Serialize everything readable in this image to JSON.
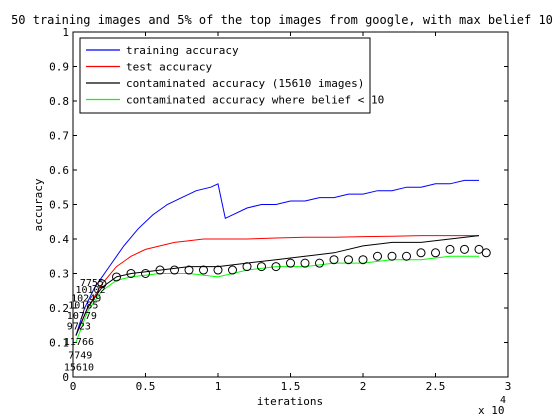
{
  "chart_data": {
    "type": "line",
    "title": "50 training images and 5% of the top images from google, with max belief 10",
    "xlabel": "iterations",
    "ylabel": "accuracy",
    "x_exponent": "x 10",
    "x_exponent_power": "4",
    "xlim": [
      0,
      3
    ],
    "ylim": [
      0,
      1
    ],
    "xticks": [
      0,
      0.5,
      1,
      1.5,
      2,
      2.5,
      3
    ],
    "xtick_labels": [
      "0",
      "0.5",
      "1",
      "1.5",
      "2",
      "2.5",
      "3"
    ],
    "yticks": [
      0,
      0.1,
      0.2,
      0.3,
      0.4,
      0.5,
      0.6,
      0.7,
      0.8,
      0.9,
      1
    ],
    "ytick_labels": [
      "0",
      "0.1",
      "0.2",
      "0.3",
      "0.4",
      "0.5",
      "0.6",
      "0.7",
      "0.8",
      "0.9",
      "1"
    ],
    "legend_position": "top-left",
    "series": [
      {
        "name": "training accuracy",
        "color": "#0000ff",
        "x": [
          0.02,
          0.08,
          0.15,
          0.25,
          0.35,
          0.45,
          0.55,
          0.65,
          0.75,
          0.85,
          0.95,
          1.0,
          1.02,
          1.05,
          1.1,
          1.2,
          1.3,
          1.4,
          1.5,
          1.6,
          1.7,
          1.8,
          1.9,
          2.0,
          2.1,
          2.2,
          2.3,
          2.4,
          2.5,
          2.6,
          2.7,
          2.8
        ],
        "y": [
          0.12,
          0.2,
          0.26,
          0.32,
          0.38,
          0.43,
          0.47,
          0.5,
          0.52,
          0.54,
          0.55,
          0.56,
          0.52,
          0.46,
          0.47,
          0.49,
          0.5,
          0.5,
          0.51,
          0.51,
          0.52,
          0.52,
          0.53,
          0.53,
          0.54,
          0.54,
          0.55,
          0.55,
          0.56,
          0.56,
          0.57,
          0.57
        ]
      },
      {
        "name": "test accuracy",
        "color": "#ff0000",
        "x": [
          0.02,
          0.1,
          0.2,
          0.3,
          0.4,
          0.5,
          0.6,
          0.7,
          0.8,
          0.9,
          1.0,
          1.2,
          1.4,
          1.6,
          1.8,
          2.0,
          2.2,
          2.4,
          2.6,
          2.8
        ],
        "y": [
          0.12,
          0.2,
          0.27,
          0.32,
          0.35,
          0.37,
          0.38,
          0.39,
          0.395,
          0.4,
          0.4,
          0.4,
          0.403,
          0.405,
          0.405,
          0.407,
          0.408,
          0.41,
          0.41,
          0.41
        ]
      },
      {
        "name": "contaminated accuracy (15610 images)",
        "color": "#000000",
        "x": [
          0.02,
          0.1,
          0.2,
          0.3,
          0.4,
          0.6,
          0.8,
          1.0,
          1.2,
          1.4,
          1.6,
          1.8,
          2.0,
          2.2,
          2.4,
          2.6,
          2.8
        ],
        "y": [
          0.12,
          0.2,
          0.26,
          0.29,
          0.3,
          0.31,
          0.32,
          0.32,
          0.33,
          0.34,
          0.35,
          0.36,
          0.38,
          0.39,
          0.39,
          0.4,
          0.41
        ]
      },
      {
        "name": "contaminated accuracy where belief < 10",
        "color": "#00ff00",
        "x": [
          0.02,
          0.1,
          0.2,
          0.3,
          0.4,
          0.6,
          0.8,
          1.0,
          1.2,
          1.4,
          1.6,
          1.8,
          2.0,
          2.2,
          2.4,
          2.6,
          2.8
        ],
        "y": [
          0.1,
          0.19,
          0.25,
          0.28,
          0.29,
          0.3,
          0.3,
          0.29,
          0.31,
          0.32,
          0.32,
          0.33,
          0.33,
          0.34,
          0.34,
          0.35,
          0.35
        ]
      }
    ],
    "circle_markers": {
      "color": "#000000",
      "x": [
        0.2,
        0.3,
        0.4,
        0.5,
        0.6,
        0.7,
        0.8,
        0.9,
        1.0,
        1.1,
        1.2,
        1.3,
        1.4,
        1.5,
        1.6,
        1.7,
        1.8,
        1.9,
        2.0,
        2.1,
        2.2,
        2.3,
        2.4,
        2.5,
        2.6,
        2.7,
        2.8,
        2.85
      ],
      "y": [
        0.27,
        0.29,
        0.3,
        0.3,
        0.31,
        0.31,
        0.31,
        0.31,
        0.31,
        0.31,
        0.32,
        0.32,
        0.32,
        0.33,
        0.33,
        0.33,
        0.34,
        0.34,
        0.34,
        0.35,
        0.35,
        0.35,
        0.36,
        0.36,
        0.37,
        0.37,
        0.37,
        0.36
      ]
    },
    "point_labels": [
      {
        "text": "15610",
        "x": 0.02,
        "y": 0.03
      },
      {
        "text": "7749",
        "x": 0.05,
        "y": 0.065
      },
      {
        "text": "11766",
        "x": 0.02,
        "y": 0.105
      },
      {
        "text": "9723",
        "x": 0.04,
        "y": 0.15
      },
      {
        "text": "10779",
        "x": 0.04,
        "y": 0.18
      },
      {
        "text": "10185",
        "x": 0.05,
        "y": 0.21
      },
      {
        "text": "10249",
        "x": 0.07,
        "y": 0.23
      },
      {
        "text": "10102",
        "x": 0.1,
        "y": 0.255
      },
      {
        "text": "7755",
        "x": 0.13,
        "y": 0.275
      }
    ]
  }
}
